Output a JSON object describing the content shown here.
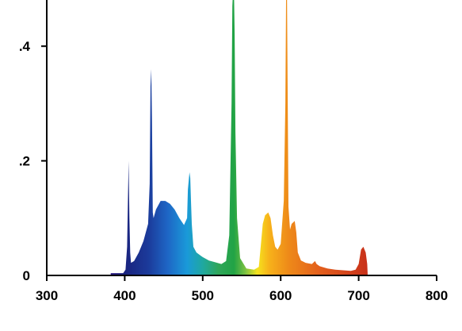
{
  "chart_data": {
    "type": "area",
    "title": "",
    "xlabel": "",
    "ylabel": "",
    "xlim": [
      300,
      800
    ],
    "ylim": [
      0,
      0.5
    ],
    "x_ticks": [
      {
        "value": 300,
        "label": "300"
      },
      {
        "value": 400,
        "label": "400"
      },
      {
        "value": 500,
        "label": "500"
      },
      {
        "value": 600,
        "label": "600"
      },
      {
        "value": 700,
        "label": "700"
      },
      {
        "value": 800,
        "label": "800"
      }
    ],
    "y_ticks": [
      {
        "value": 0,
        "label": "0"
      },
      {
        "value": 0.2,
        "label": ".2"
      },
      {
        "value": 0.4,
        "label": ".4"
      }
    ],
    "grid": false,
    "legend": "none",
    "fill": "spectral gradient (violet to red)",
    "series": [
      {
        "x": [
          382,
          398,
          401,
          403,
          404,
          405,
          406,
          407,
          408,
          412,
          418,
          424,
          430,
          432,
          433,
          434,
          435,
          436,
          437,
          440,
          446,
          452,
          458,
          464,
          470,
          476,
          480,
          481,
          483,
          484,
          485,
          486,
          488,
          492,
          500,
          508,
          516,
          524,
          530,
          534,
          537,
          538,
          539,
          540,
          541,
          542,
          544,
          548,
          556,
          566,
          572,
          575,
          577,
          580,
          584,
          587,
          590,
          593,
          596,
          600,
          604,
          606,
          607,
          608,
          609,
          610,
          612,
          614,
          618,
          620,
          622,
          626,
          632,
          640,
          644,
          646,
          650,
          660,
          670,
          690,
          696,
          700,
          703,
          706,
          709,
          711,
          711.5
        ],
        "y": [
          0.004,
          0.004,
          0.01,
          0.05,
          0.12,
          0.2,
          0.1,
          0.04,
          0.022,
          0.025,
          0.04,
          0.06,
          0.09,
          0.16,
          0.33,
          0.36,
          0.27,
          0.11,
          0.1,
          0.115,
          0.13,
          0.13,
          0.125,
          0.115,
          0.1,
          0.088,
          0.1,
          0.15,
          0.18,
          0.17,
          0.13,
          0.09,
          0.05,
          0.04,
          0.032,
          0.026,
          0.023,
          0.02,
          0.025,
          0.07,
          0.3,
          0.47,
          0.5,
          0.5,
          0.42,
          0.25,
          0.1,
          0.03,
          0.012,
          0.01,
          0.015,
          0.06,
          0.09,
          0.105,
          0.11,
          0.1,
          0.07,
          0.05,
          0.045,
          0.055,
          0.13,
          0.3,
          0.5,
          0.5,
          0.3,
          0.12,
          0.08,
          0.09,
          0.095,
          0.075,
          0.04,
          0.026,
          0.022,
          0.02,
          0.025,
          0.02,
          0.016,
          0.012,
          0.01,
          0.008,
          0.01,
          0.02,
          0.045,
          0.05,
          0.04,
          0.02,
          0.004
        ]
      }
    ],
    "colors": {
      "axis": "#000000",
      "gradient_stops": [
        {
          "wavelength": 382,
          "color": "#2d1a80"
        },
        {
          "wavelength": 400,
          "color": "#1a237e"
        },
        {
          "wavelength": 430,
          "color": "#1b3a9a"
        },
        {
          "wavelength": 455,
          "color": "#1e66c5"
        },
        {
          "wavelength": 480,
          "color": "#1a9ad9"
        },
        {
          "wavelength": 500,
          "color": "#1fa8a0"
        },
        {
          "wavelength": 520,
          "color": "#2fa65a"
        },
        {
          "wavelength": 540,
          "color": "#21a345"
        },
        {
          "wavelength": 555,
          "color": "#7dc242"
        },
        {
          "wavelength": 570,
          "color": "#f5e31e"
        },
        {
          "wavelength": 585,
          "color": "#f7b21a"
        },
        {
          "wavelength": 610,
          "color": "#ee8a19"
        },
        {
          "wavelength": 650,
          "color": "#e35f1c"
        },
        {
          "wavelength": 712,
          "color": "#c8301a"
        }
      ]
    }
  }
}
